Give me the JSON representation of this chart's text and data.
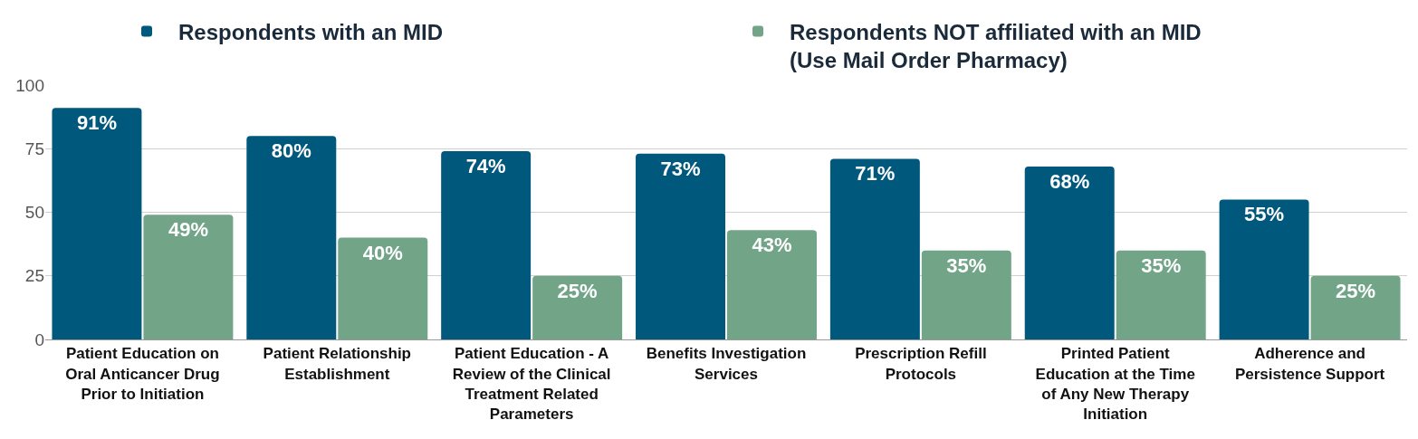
{
  "chart_data": {
    "type": "bar",
    "categories": [
      "Patient Education on Oral Anticancer Drug Prior to Initiation",
      "Patient Relationship Establishment",
      "Patient Education - A Review of the Clinical Treatment Related Parameters",
      "Benefits Investigation Services",
      "Prescription Refill Protocols",
      "Printed Patient Education at the Time of Any New Therapy Initiation",
      "Adherence and Persistence Support"
    ],
    "series": [
      {
        "name": "Respondents with an MID",
        "color": "#00587c",
        "values": [
          91,
          80,
          74,
          73,
          71,
          68,
          55
        ],
        "value_labels": [
          "91%",
          "80%",
          "74%",
          "73%",
          "71%",
          "68%",
          "55%"
        ]
      },
      {
        "name": "Respondents NOT affiliated with an MID\n(Use Mail Order Pharmacy)",
        "color": "#72a488",
        "values": [
          49,
          40,
          25,
          43,
          35,
          35,
          25
        ],
        "value_labels": [
          "49%",
          "40%",
          "25%",
          "43%",
          "35%",
          "35%",
          "25%"
        ]
      }
    ],
    "ylim": [
      0,
      100
    ],
    "yticks": [
      0,
      25,
      50,
      75,
      100
    ],
    "grid": "y",
    "legend": "top"
  }
}
